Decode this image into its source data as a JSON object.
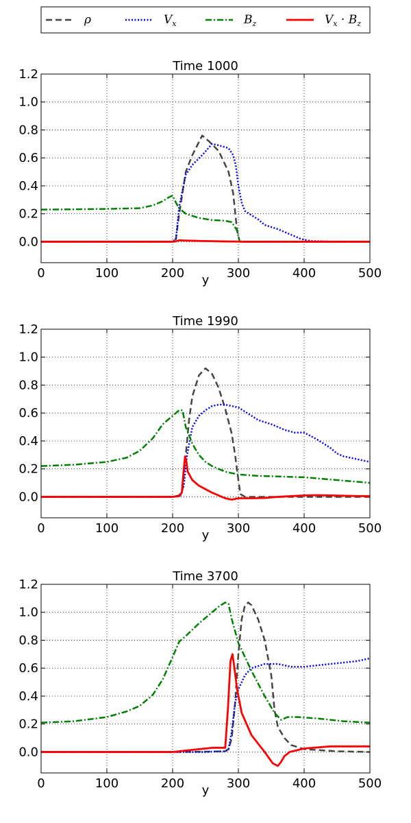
{
  "legend": {
    "entries": [
      {
        "key": "rho",
        "label": "ρ",
        "base": "ρ",
        "sub": "",
        "style": "dashed",
        "color": "#444444"
      },
      {
        "key": "vx",
        "label": "V_x",
        "base": "V",
        "sub": "x",
        "style": "dotted",
        "color": "#0000ee"
      },
      {
        "key": "bz",
        "label": "B_z",
        "base": "B",
        "sub": "z",
        "style": "dashdot",
        "color": "#008000"
      },
      {
        "key": "vxbz",
        "label": "V_x · B_z",
        "base": "V",
        "sub": "x",
        "base2": " · B",
        "sub2": "z",
        "style": "solid",
        "color": "#ff0000"
      }
    ]
  },
  "chart_data": [
    {
      "type": "line",
      "title": "Time 1000",
      "xlabel": "y",
      "ylabel": "",
      "xlim": [
        0,
        500
      ],
      "ylim": [
        -0.15,
        1.2
      ],
      "xticks": [
        "0",
        "100",
        "200",
        "300",
        "400",
        "500"
      ],
      "yticks": [
        "0.0",
        "0.2",
        "0.4",
        "0.6",
        "0.8",
        "1.0",
        "1.2"
      ],
      "grid": true,
      "series": [
        {
          "name": "ρ",
          "key": "rho",
          "x": [
            0,
            100,
            200,
            205,
            210,
            220,
            230,
            245,
            255,
            270,
            285,
            292,
            298,
            302,
            400,
            500
          ],
          "y": [
            0,
            0,
            0,
            0.02,
            0.2,
            0.5,
            0.62,
            0.76,
            0.72,
            0.65,
            0.5,
            0.35,
            0.08,
            0,
            0,
            0
          ]
        },
        {
          "name": "V_x",
          "key": "vx",
          "x": [
            0,
            100,
            200,
            205,
            210,
            220,
            230,
            245,
            260,
            270,
            285,
            292,
            296,
            300,
            305,
            310,
            320,
            330,
            340,
            360,
            380,
            395,
            410,
            450,
            500
          ],
          "y": [
            0,
            0,
            0,
            0.02,
            0.25,
            0.48,
            0.55,
            0.62,
            0.7,
            0.69,
            0.67,
            0.62,
            0.55,
            0.4,
            0.28,
            0.22,
            0.19,
            0.16,
            0.12,
            0.09,
            0.05,
            0.02,
            0.005,
            0,
            0
          ]
        },
        {
          "name": "B_z",
          "key": "bz",
          "x": [
            0,
            50,
            100,
            150,
            170,
            185,
            195,
            200,
            205,
            210,
            220,
            240,
            260,
            280,
            290,
            298,
            302,
            310,
            400,
            500
          ],
          "y": [
            0.23,
            0.232,
            0.235,
            0.24,
            0.26,
            0.29,
            0.32,
            0.33,
            0.28,
            0.24,
            0.2,
            0.17,
            0.155,
            0.15,
            0.14,
            0.08,
            0,
            0,
            0,
            0
          ]
        },
        {
          "name": "V_x · B_z",
          "key": "vxbz",
          "x": [
            0,
            100,
            200,
            205,
            210,
            220,
            240,
            260,
            280,
            300,
            310,
            400,
            500
          ],
          "y": [
            0,
            0,
            0,
            0.003,
            0.01,
            0.008,
            0.006,
            0.004,
            0.002,
            0.001,
            0,
            0,
            0
          ]
        }
      ]
    },
    {
      "type": "line",
      "title": "Time 1990",
      "xlabel": "y",
      "ylabel": "",
      "xlim": [
        0,
        500
      ],
      "ylim": [
        -0.15,
        1.2
      ],
      "xticks": [
        "0",
        "100",
        "200",
        "300",
        "400",
        "500"
      ],
      "yticks": [
        "0.0",
        "0.2",
        "0.4",
        "0.6",
        "0.8",
        "1.0",
        "1.2"
      ],
      "grid": true,
      "series": [
        {
          "name": "ρ",
          "key": "rho",
          "x": [
            0,
            100,
            200,
            210,
            215,
            220,
            225,
            230,
            240,
            250,
            260,
            270,
            280,
            290,
            295,
            300,
            303,
            310,
            400,
            500
          ],
          "y": [
            0,
            0,
            0,
            0.01,
            0.05,
            0.3,
            0.55,
            0.72,
            0.87,
            0.92,
            0.88,
            0.78,
            0.63,
            0.45,
            0.3,
            0.12,
            0.02,
            0,
            0,
            0
          ]
        },
        {
          "name": "V_x",
          "key": "vx",
          "x": [
            0,
            100,
            200,
            212,
            217,
            222,
            230,
            240,
            250,
            260,
            270,
            280,
            290,
            300,
            320,
            330,
            350,
            370,
            385,
            400,
            420,
            440,
            450,
            460,
            480,
            500
          ],
          "y": [
            0,
            0,
            0,
            0.01,
            0.08,
            0.3,
            0.5,
            0.58,
            0.62,
            0.65,
            0.66,
            0.66,
            0.65,
            0.64,
            0.58,
            0.55,
            0.52,
            0.48,
            0.46,
            0.46,
            0.41,
            0.35,
            0.31,
            0.29,
            0.27,
            0.25
          ]
        },
        {
          "name": "B_z",
          "key": "bz",
          "x": [
            0,
            50,
            100,
            130,
            150,
            170,
            185,
            200,
            210,
            215,
            220,
            230,
            240,
            250,
            260,
            280,
            300,
            330,
            400,
            450,
            500
          ],
          "y": [
            0.22,
            0.23,
            0.25,
            0.28,
            0.33,
            0.42,
            0.52,
            0.58,
            0.62,
            0.62,
            0.5,
            0.38,
            0.3,
            0.25,
            0.22,
            0.18,
            0.16,
            0.15,
            0.14,
            0.12,
            0.1
          ]
        },
        {
          "name": "V_x · B_z",
          "key": "vxbz",
          "x": [
            0,
            100,
            200,
            210,
            214,
            217,
            219,
            221,
            223,
            230,
            240,
            260,
            280,
            290,
            300,
            320,
            340,
            360,
            380,
            400,
            420,
            440,
            460,
            480,
            500
          ],
          "y": [
            0,
            0,
            0,
            0.005,
            0.03,
            0.2,
            0.29,
            0.25,
            0.18,
            0.12,
            0.08,
            0.03,
            -0.01,
            -0.02,
            -0.01,
            -0.01,
            -0.008,
            0,
            0.005,
            0.01,
            0.012,
            0.01,
            0.008,
            0.006,
            0.005
          ]
        }
      ]
    },
    {
      "type": "line",
      "title": "Time 3700",
      "xlabel": "y",
      "ylabel": "",
      "xlim": [
        0,
        500
      ],
      "ylim": [
        -0.15,
        1.2
      ],
      "xticks": [
        "0",
        "100",
        "200",
        "300",
        "400",
        "500"
      ],
      "yticks": [
        "0.0",
        "0.2",
        "0.4",
        "0.6",
        "0.8",
        "1.0",
        "1.2"
      ],
      "grid": true,
      "series": [
        {
          "name": "ρ",
          "key": "rho",
          "x": [
            0,
            100,
            200,
            250,
            280,
            285,
            290,
            295,
            300,
            305,
            310,
            315,
            320,
            330,
            340,
            350,
            355,
            360,
            370,
            380,
            400,
            450,
            500
          ],
          "y": [
            0,
            0,
            0,
            0.002,
            0.005,
            0.02,
            0.1,
            0.35,
            0.7,
            0.95,
            1.05,
            1.07,
            1.05,
            0.95,
            0.8,
            0.55,
            0.3,
            0.18,
            0.1,
            0.05,
            0.02,
            0.005,
            0
          ]
        },
        {
          "name": "V_x",
          "key": "vx",
          "x": [
            0,
            100,
            200,
            250,
            280,
            285,
            290,
            295,
            300,
            310,
            320,
            340,
            360,
            380,
            400,
            420,
            440,
            460,
            480,
            500
          ],
          "y": [
            0,
            0,
            0,
            0,
            0.005,
            0.02,
            0.15,
            0.35,
            0.45,
            0.55,
            0.6,
            0.63,
            0.63,
            0.61,
            0.61,
            0.62,
            0.63,
            0.64,
            0.65,
            0.67
          ]
        },
        {
          "name": "B_z",
          "key": "bz",
          "x": [
            0,
            50,
            100,
            130,
            150,
            170,
            185,
            200,
            210,
            220,
            240,
            260,
            270,
            280,
            285,
            290,
            300,
            320,
            340,
            355,
            365,
            375,
            390,
            420,
            460,
            500
          ],
          "y": [
            0.21,
            0.22,
            0.25,
            0.29,
            0.33,
            0.41,
            0.52,
            0.68,
            0.79,
            0.83,
            0.92,
            1.0,
            1.04,
            1.07,
            1.06,
            0.95,
            0.78,
            0.58,
            0.4,
            0.28,
            0.23,
            0.25,
            0.25,
            0.24,
            0.22,
            0.21
          ]
        },
        {
          "name": "V_x · B_z",
          "key": "vxbz",
          "x": [
            0,
            100,
            200,
            220,
            260,
            280,
            284,
            288,
            291,
            294,
            298,
            305,
            320,
            340,
            352,
            360,
            365,
            370,
            378,
            400,
            440,
            480,
            500
          ],
          "y": [
            0,
            0,
            0,
            0.01,
            0.03,
            0.03,
            0.3,
            0.65,
            0.7,
            0.6,
            0.45,
            0.28,
            0.12,
            0.0,
            -0.08,
            -0.1,
            -0.07,
            -0.03,
            0,
            0.025,
            0.04,
            0.04,
            0.04
          ]
        }
      ]
    }
  ]
}
